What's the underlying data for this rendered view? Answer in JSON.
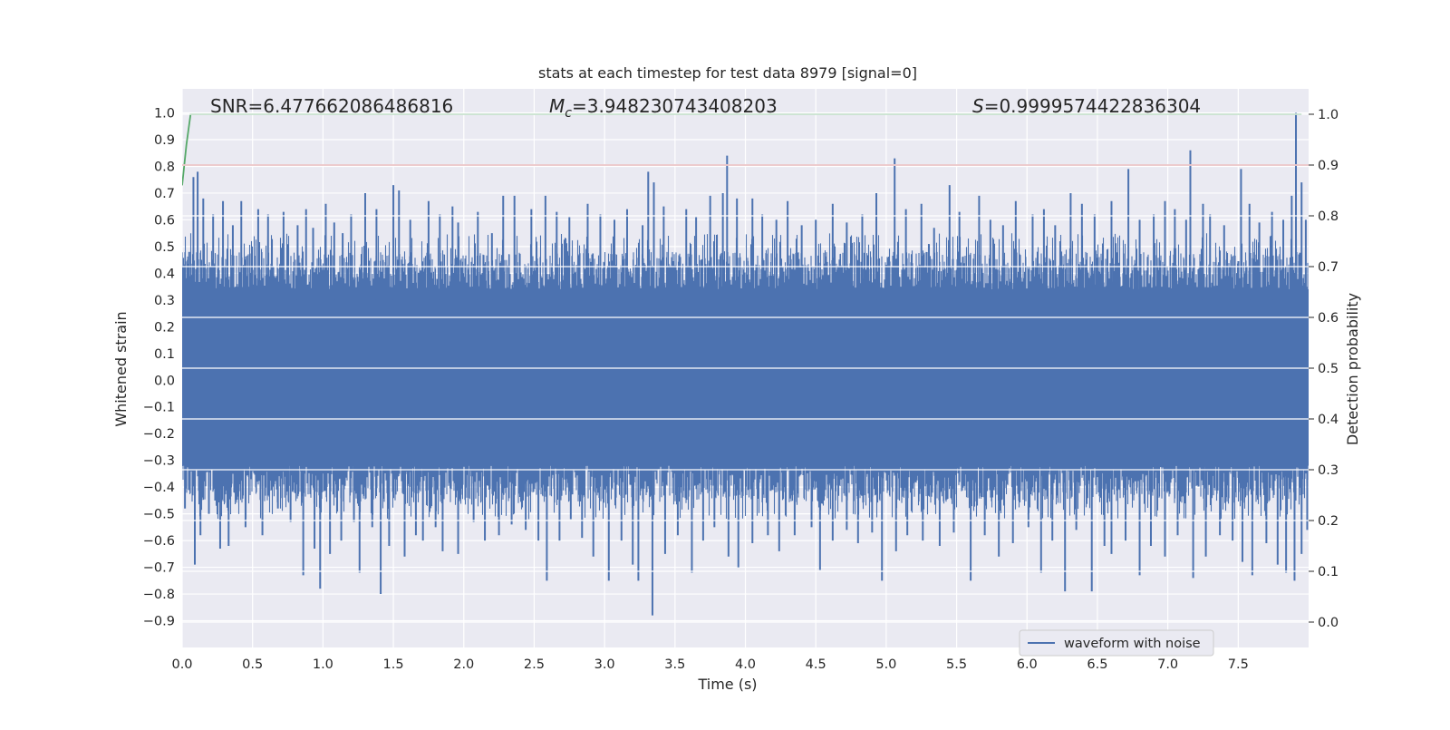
{
  "chart_data": {
    "type": "line",
    "title": "stats at each timestep for test data 8979 [signal=0]",
    "xlabel": "Time (s)",
    "ylabel_left": "Whitened strain",
    "ylabel_right": "Detection probability",
    "xlim": [
      0.0,
      8.0
    ],
    "ylim_left": [
      -1.0,
      1.09
    ],
    "ylim_right": [
      -0.05,
      1.05
    ],
    "x_ticks": [
      0.0,
      0.5,
      1.0,
      1.5,
      2.0,
      2.5,
      3.0,
      3.5,
      4.0,
      4.5,
      5.0,
      5.5,
      6.0,
      6.5,
      7.0,
      7.5
    ],
    "x_tick_labels": [
      "0.0",
      "0.5",
      "1.0",
      "1.5",
      "2.0",
      "2.5",
      "3.0",
      "3.5",
      "4.0",
      "4.5",
      "5.0",
      "5.5",
      "6.0",
      "6.5",
      "7.0",
      "7.5"
    ],
    "y_left_ticks": [
      1.0,
      0.9,
      0.8,
      0.7,
      0.6,
      0.5,
      0.4,
      0.3,
      0.2,
      0.1,
      0.0,
      -0.1,
      -0.2,
      -0.3,
      -0.4,
      -0.5,
      -0.6,
      -0.7,
      -0.8,
      -0.9
    ],
    "y_left_tick_labels": [
      "1.0",
      "0.9",
      "0.8",
      "0.7",
      "0.6",
      "0.5",
      "0.4",
      "0.3",
      "0.2",
      "0.1",
      "0.0",
      "−0.1",
      "−0.2",
      "−0.3",
      "−0.4",
      "−0.5",
      "−0.6",
      "−0.7",
      "−0.8",
      "−0.9"
    ],
    "y_right_ticks": [
      1.0,
      0.9,
      0.8,
      0.7,
      0.6,
      0.5,
      0.4,
      0.3,
      0.2,
      0.1,
      0.0
    ],
    "y_right_tick_labels": [
      "1.0",
      "0.9",
      "0.8",
      "0.7",
      "0.6",
      "0.5",
      "0.4",
      "0.3",
      "0.2",
      "0.1",
      "0.0"
    ],
    "grid": true,
    "legend_position": "bottom-right",
    "annotations": {
      "snr": "SNR=6.477662086486816",
      "mc_symbol": "M",
      "mc_subscript": "c",
      "mc_value": "=3.948230743408203",
      "s_symbol": "S",
      "s_value": "=0.9999574422836304"
    },
    "series": [
      {
        "name": "waveform with noise",
        "axis": "left",
        "color": "#4c72b0",
        "envelope_band": [
          -0.32,
          0.34
        ],
        "sample_rate_hz": 2048,
        "upper_spikes": [
          [
            0.05,
            0.48
          ],
          [
            0.08,
            0.76
          ],
          [
            0.11,
            0.78
          ],
          [
            0.15,
            0.68
          ],
          [
            0.22,
            0.62
          ],
          [
            0.29,
            0.67
          ],
          [
            0.36,
            0.58
          ],
          [
            0.42,
            0.67
          ],
          [
            0.54,
            0.64
          ],
          [
            0.61,
            0.62
          ],
          [
            0.72,
            0.63
          ],
          [
            0.82,
            0.58
          ],
          [
            0.88,
            0.64
          ],
          [
            0.93,
            0.57
          ],
          [
            1.02,
            0.66
          ],
          [
            1.08,
            0.59
          ],
          [
            1.14,
            0.55
          ],
          [
            1.2,
            0.62
          ],
          [
            1.3,
            0.7
          ],
          [
            1.38,
            0.64
          ],
          [
            1.5,
            0.73
          ],
          [
            1.54,
            0.71
          ],
          [
            1.62,
            0.6
          ],
          [
            1.75,
            0.67
          ],
          [
            1.83,
            0.62
          ],
          [
            1.92,
            0.65
          ],
          [
            1.96,
            0.59
          ],
          [
            2.1,
            0.63
          ],
          [
            2.2,
            0.55
          ],
          [
            2.28,
            0.69
          ],
          [
            2.36,
            0.69
          ],
          [
            2.48,
            0.64
          ],
          [
            2.58,
            0.69
          ],
          [
            2.66,
            0.63
          ],
          [
            2.75,
            0.61
          ],
          [
            2.88,
            0.66
          ],
          [
            2.97,
            0.62
          ],
          [
            3.07,
            0.6
          ],
          [
            3.16,
            0.64
          ],
          [
            3.27,
            0.58
          ],
          [
            3.31,
            0.78
          ],
          [
            3.35,
            0.74
          ],
          [
            3.42,
            0.65
          ],
          [
            3.58,
            0.64
          ],
          [
            3.65,
            0.61
          ],
          [
            3.75,
            0.69
          ],
          [
            3.84,
            0.7
          ],
          [
            3.87,
            0.84
          ],
          [
            3.94,
            0.68
          ],
          [
            4.05,
            0.68
          ],
          [
            4.12,
            0.62
          ],
          [
            4.22,
            0.6
          ],
          [
            4.3,
            0.67
          ],
          [
            4.4,
            0.58
          ],
          [
            4.5,
            0.6
          ],
          [
            4.62,
            0.66
          ],
          [
            4.72,
            0.59
          ],
          [
            4.83,
            0.62
          ],
          [
            4.93,
            0.7
          ],
          [
            5.06,
            0.83
          ],
          [
            5.14,
            0.64
          ],
          [
            5.25,
            0.66
          ],
          [
            5.34,
            0.57
          ],
          [
            5.45,
            0.73
          ],
          [
            5.52,
            0.63
          ],
          [
            5.66,
            0.69
          ],
          [
            5.74,
            0.6
          ],
          [
            5.83,
            0.58
          ],
          [
            5.92,
            0.67
          ],
          [
            6.04,
            0.62
          ],
          [
            6.12,
            0.64
          ],
          [
            6.2,
            0.58
          ],
          [
            6.31,
            0.7
          ],
          [
            6.39,
            0.66
          ],
          [
            6.48,
            0.62
          ],
          [
            6.6,
            0.67
          ],
          [
            6.72,
            0.79
          ],
          [
            6.8,
            0.6
          ],
          [
            6.9,
            0.62
          ],
          [
            6.98,
            0.67
          ],
          [
            7.05,
            0.64
          ],
          [
            7.13,
            0.6
          ],
          [
            7.16,
            0.86
          ],
          [
            7.25,
            0.66
          ],
          [
            7.3,
            0.62
          ],
          [
            7.4,
            0.58
          ],
          [
            7.52,
            0.79
          ],
          [
            7.58,
            0.66
          ],
          [
            7.65,
            0.59
          ],
          [
            7.74,
            0.63
          ],
          [
            7.82,
            0.6
          ],
          [
            7.88,
            0.69
          ],
          [
            7.91,
            1.0
          ],
          [
            7.95,
            0.74
          ],
          [
            7.98,
            0.6
          ]
        ],
        "lower_spikes": [
          [
            0.02,
            -0.48
          ],
          [
            0.09,
            -0.69
          ],
          [
            0.13,
            -0.58
          ],
          [
            0.19,
            -0.5
          ],
          [
            0.27,
            -0.63
          ],
          [
            0.33,
            -0.62
          ],
          [
            0.45,
            -0.55
          ],
          [
            0.57,
            -0.58
          ],
          [
            0.68,
            -0.48
          ],
          [
            0.77,
            -0.53
          ],
          [
            0.86,
            -0.73
          ],
          [
            0.94,
            -0.63
          ],
          [
            0.98,
            -0.78
          ],
          [
            1.05,
            -0.65
          ],
          [
            1.13,
            -0.6
          ],
          [
            1.22,
            -0.53
          ],
          [
            1.26,
            -0.72
          ],
          [
            1.35,
            -0.55
          ],
          [
            1.41,
            -0.8
          ],
          [
            1.47,
            -0.62
          ],
          [
            1.58,
            -0.66
          ],
          [
            1.66,
            -0.58
          ],
          [
            1.71,
            -0.6
          ],
          [
            1.8,
            -0.55
          ],
          [
            1.85,
            -0.64
          ],
          [
            1.96,
            -0.65
          ],
          [
            2.07,
            -0.53
          ],
          [
            2.15,
            -0.6
          ],
          [
            2.25,
            -0.58
          ],
          [
            2.34,
            -0.54
          ],
          [
            2.44,
            -0.56
          ],
          [
            2.53,
            -0.6
          ],
          [
            2.59,
            -0.75
          ],
          [
            2.68,
            -0.6
          ],
          [
            2.76,
            -0.52
          ],
          [
            2.84,
            -0.59
          ],
          [
            2.92,
            -0.66
          ],
          [
            3.03,
            -0.75
          ],
          [
            3.12,
            -0.6
          ],
          [
            3.2,
            -0.69
          ],
          [
            3.24,
            -0.75
          ],
          [
            3.34,
            -0.88
          ],
          [
            3.43,
            -0.65
          ],
          [
            3.52,
            -0.58
          ],
          [
            3.62,
            -0.72
          ],
          [
            3.7,
            -0.6
          ],
          [
            3.78,
            -0.55
          ],
          [
            3.88,
            -0.66
          ],
          [
            3.95,
            -0.7
          ],
          [
            4.05,
            -0.61
          ],
          [
            4.16,
            -0.58
          ],
          [
            4.24,
            -0.64
          ],
          [
            4.35,
            -0.58
          ],
          [
            4.47,
            -0.55
          ],
          [
            4.53,
            -0.71
          ],
          [
            4.62,
            -0.6
          ],
          [
            4.72,
            -0.56
          ],
          [
            4.8,
            -0.61
          ],
          [
            4.9,
            -0.57
          ],
          [
            4.97,
            -0.75
          ],
          [
            5.07,
            -0.64
          ],
          [
            5.15,
            -0.58
          ],
          [
            5.26,
            -0.6
          ],
          [
            5.38,
            -0.62
          ],
          [
            5.48,
            -0.57
          ],
          [
            5.6,
            -0.75
          ],
          [
            5.7,
            -0.58
          ],
          [
            5.8,
            -0.66
          ],
          [
            5.9,
            -0.61
          ],
          [
            6.01,
            -0.55
          ],
          [
            6.1,
            -0.72
          ],
          [
            6.18,
            -0.6
          ],
          [
            6.27,
            -0.79
          ],
          [
            6.35,
            -0.56
          ],
          [
            6.46,
            -0.79
          ],
          [
            6.55,
            -0.62
          ],
          [
            6.6,
            -0.65
          ],
          [
            6.7,
            -0.6
          ],
          [
            6.8,
            -0.73
          ],
          [
            6.88,
            -0.62
          ],
          [
            6.98,
            -0.66
          ],
          [
            7.07,
            -0.58
          ],
          [
            7.18,
            -0.74
          ],
          [
            7.27,
            -0.66
          ],
          [
            7.37,
            -0.58
          ],
          [
            7.46,
            -0.6
          ],
          [
            7.53,
            -0.68
          ],
          [
            7.6,
            -0.73
          ],
          [
            7.7,
            -0.61
          ],
          [
            7.78,
            -0.69
          ],
          [
            7.84,
            -0.72
          ],
          [
            7.9,
            -0.75
          ],
          [
            7.95,
            -0.65
          ],
          [
            7.99,
            -0.56
          ]
        ]
      },
      {
        "name": "",
        "axis": "right",
        "color": "#55a868",
        "x": [
          0.0,
          0.03,
          0.06,
          0.1,
          2.0,
          4.0,
          6.0,
          7.95
        ],
        "y": [
          0.86,
          0.94,
          1.0,
          1.0,
          1.0,
          1.0,
          1.0,
          1.0
        ]
      },
      {
        "name": "",
        "axis": "right",
        "color": "#c44e52",
        "x": [
          0.0,
          8.0
        ],
        "y": [
          0.9,
          0.9
        ]
      }
    ]
  }
}
